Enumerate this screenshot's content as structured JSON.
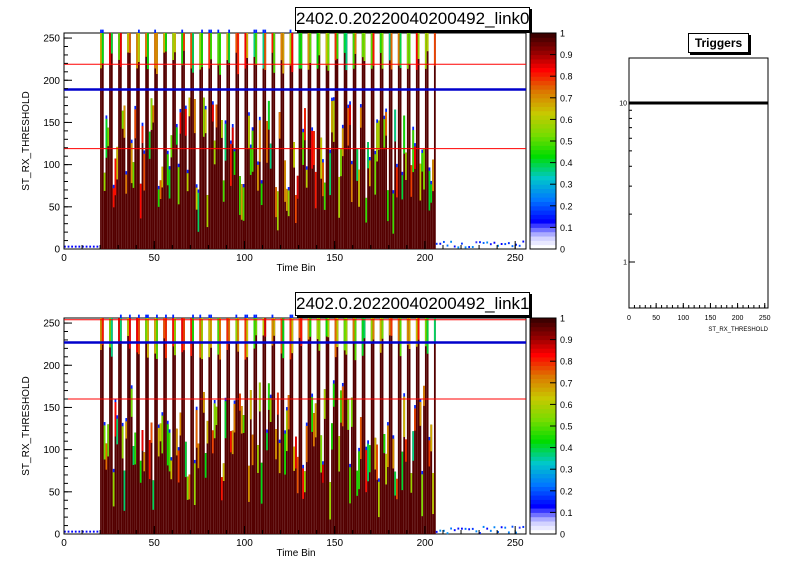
{
  "chart_data": [
    {
      "type": "heatmap",
      "title": "2402.0.20220040200492_link0",
      "xlabel": "Time Bin",
      "ylabel": "ST_RX_THRESHOLD",
      "xlim": [
        0,
        256
      ],
      "ylim": [
        0,
        256
      ],
      "x_ticks": [
        "0",
        "50",
        "100",
        "150",
        "200",
        "250"
      ],
      "y_ticks": [
        "0",
        "50",
        "100",
        "150",
        "200",
        "250"
      ],
      "z_ticks": [
        "0",
        "0.1",
        "0.2",
        "0.3",
        "0.4",
        "0.5",
        "0.6",
        "0.7",
        "0.8",
        "0.9",
        "1"
      ],
      "zlim": [
        0,
        1
      ],
      "active_bins": [
        20,
        206
      ],
      "horizontal_lines": [
        {
          "y": 219,
          "color": "#ff0000"
        },
        {
          "y": 189,
          "color": "#0000cc"
        },
        {
          "y": 119,
          "color": "#ff0000"
        }
      ]
    },
    {
      "type": "heatmap",
      "title": "2402.0.20220040200492_link1",
      "xlabel": "Time Bin",
      "ylabel": "ST_RX_THRESHOLD",
      "xlim": [
        0,
        256
      ],
      "ylim": [
        0,
        256
      ],
      "x_ticks": [
        "0",
        "50",
        "100",
        "150",
        "200",
        "250"
      ],
      "y_ticks": [
        "0",
        "50",
        "100",
        "150",
        "200",
        "250"
      ],
      "z_ticks": [
        "0",
        "0.1",
        "0.2",
        "0.3",
        "0.4",
        "0.5",
        "0.6",
        "0.7",
        "0.8",
        "0.9",
        "1"
      ],
      "zlim": [
        0,
        1
      ],
      "active_bins": [
        20,
        206
      ],
      "horizontal_lines": [
        {
          "y": 254,
          "color": "#ff0000"
        },
        {
          "y": 227,
          "color": "#0000cc"
        },
        {
          "y": 160,
          "color": "#ff0000"
        }
      ]
    },
    {
      "type": "line",
      "title": "Triggers",
      "xlabel": "ST_RX_THRESHOLD",
      "ylabel": "",
      "xlim": [
        0,
        256
      ],
      "y_scale": "log",
      "x_ticks": [
        "0",
        "50",
        "100",
        "150",
        "200",
        "250"
      ],
      "y_ticks": [
        "1",
        "10"
      ],
      "series": [
        {
          "x": [
            0,
            256
          ],
          "y": [
            10,
            10
          ]
        }
      ]
    }
  ],
  "colors": {
    "lowColor": "#ffffff",
    "blue": "#0000ff",
    "green": "#00dd00",
    "red": "#ff0000",
    "dark": "#1a0000",
    "highColor": "#8b0000"
  }
}
